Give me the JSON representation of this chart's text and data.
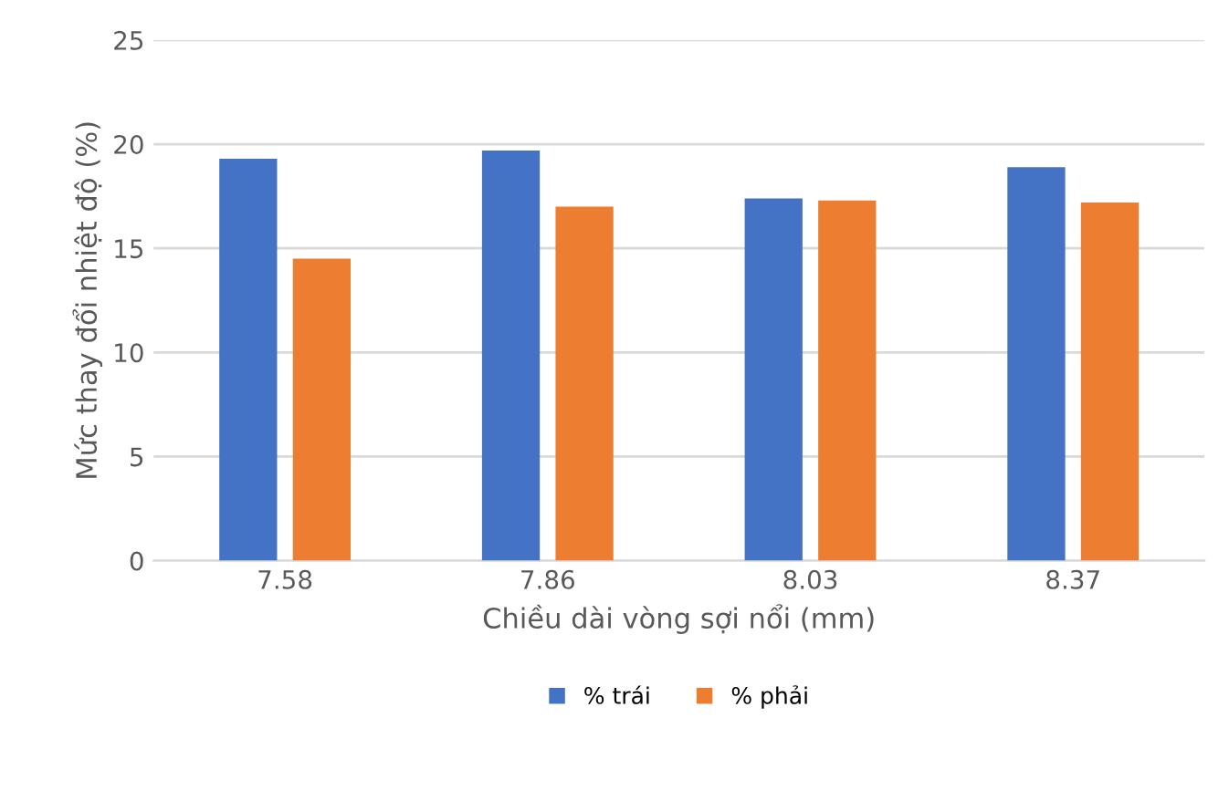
{
  "chart_data": {
    "type": "bar",
    "xlabel": "Chiều dài vòng sợi nổi (mm)",
    "ylabel": "Mức thay đổi nhiệt độ (%)",
    "categories": [
      "7.58",
      "7.86",
      "8.03",
      "8.37"
    ],
    "series": [
      {
        "name": "% trái",
        "color": "#4472c4",
        "values": [
          19.3,
          19.7,
          17.4,
          18.9
        ]
      },
      {
        "name": "% phải",
        "color": "#ed7d31",
        "values": [
          14.5,
          17.0,
          17.3,
          17.2
        ]
      }
    ],
    "ylim": [
      0,
      25
    ],
    "yticks": [
      0,
      5,
      10,
      15,
      20,
      25
    ],
    "grid": "y",
    "legend": "bottom"
  }
}
